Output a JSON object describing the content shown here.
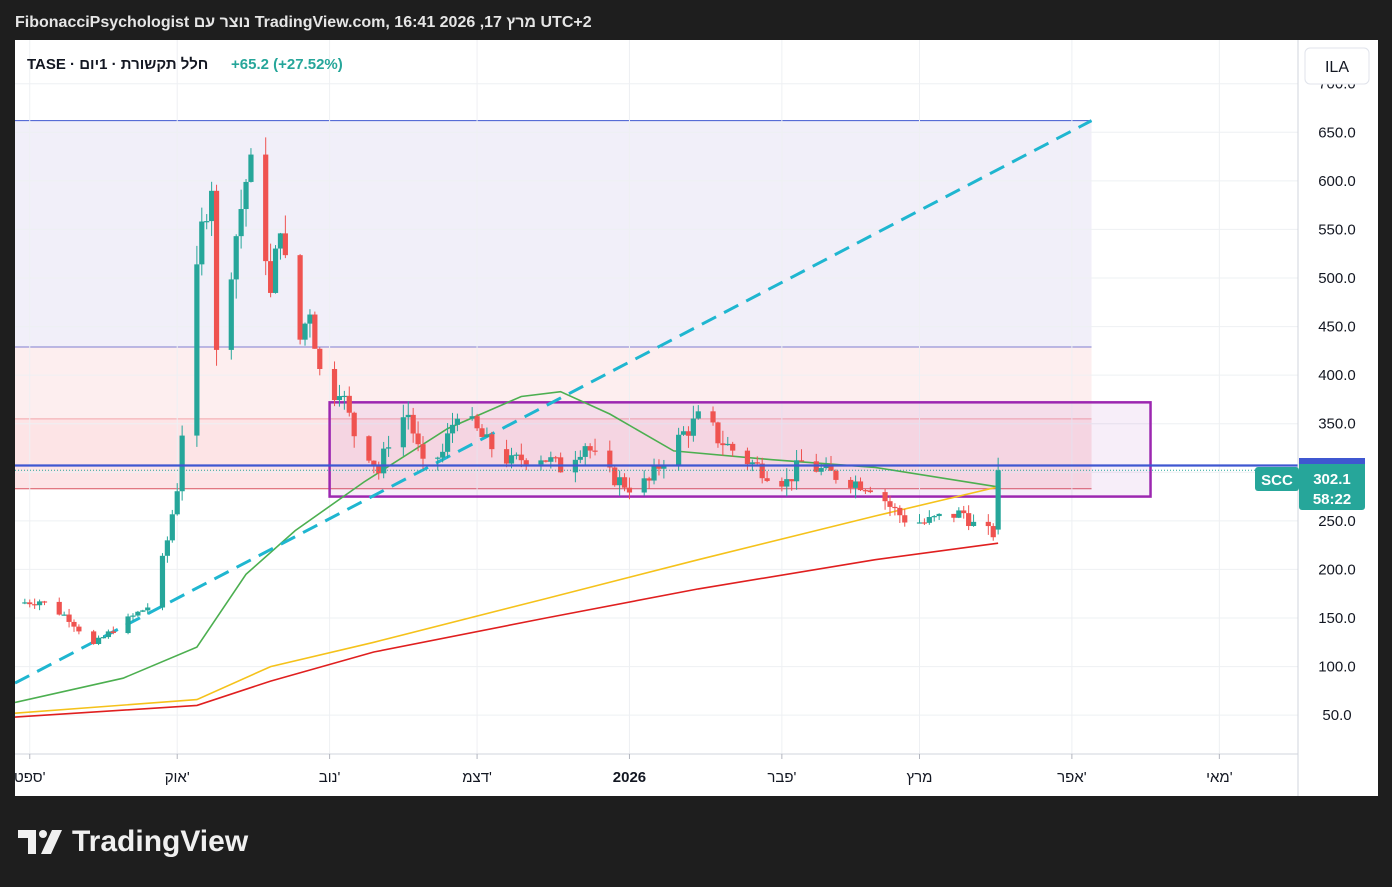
{
  "header": {
    "text": "FibonacciPsychologist נוצר עם TradingView.com, 16:41 2026 ,17 מרץ UTC+2"
  },
  "legend": {
    "symbol_line": "TASE · חלל תקשורת · 1יום",
    "change": "+65.2 (+27.52%)"
  },
  "currency": "ILA",
  "price_tag": {
    "symbol": "SCC",
    "price": "302.1",
    "countdown": "58:22"
  },
  "logo": {
    "text": "TradingView",
    "icon": "tradingview-logo-icon"
  },
  "colors": {
    "up": "#26a69a",
    "down": "#ef5350",
    "ma_green": "#4caf50",
    "ma_yellow": "#f5c21b",
    "ma_red": "#e01f1f",
    "trend": "#1fb6d0",
    "box": "#9c27b0",
    "level": "#3f57d1"
  },
  "chart_data": {
    "type": "candlestick",
    "ylim": [
      10,
      745
    ],
    "y_ticks": [
      50,
      100,
      150,
      200,
      250,
      300,
      350,
      400,
      450,
      500,
      550,
      600,
      650,
      700
    ],
    "y_tick_labels": [
      "50.0",
      "100.0",
      "150.0",
      "200.0",
      "250.0",
      "300.0",
      "350.0",
      "400.0",
      "450.0",
      "500.0",
      "550.0",
      "600.0",
      "650.0",
      "700.0"
    ],
    "x_start": "2025-08-29",
    "x_end": "2026-05-17",
    "x_ticks": [
      {
        "date": "2025-09-01",
        "label": "ספט'",
        "bold": false
      },
      {
        "date": "2025-10-01",
        "label": "אוק'",
        "bold": false
      },
      {
        "date": "2025-11-01",
        "label": "נוב'",
        "bold": false
      },
      {
        "date": "2025-12-01",
        "label": "דצמ'",
        "bold": false
      },
      {
        "date": "2026-01-01",
        "label": "2026",
        "bold": true
      },
      {
        "date": "2026-02-01",
        "label": "פבר'",
        "bold": false
      },
      {
        "date": "2026-03-01",
        "label": "מרץ",
        "bold": false
      },
      {
        "date": "2026-04-01",
        "label": "אפר'",
        "bold": false
      },
      {
        "date": "2026-05-01",
        "label": "מאי'",
        "bold": false
      }
    ],
    "anchors": [
      {
        "date": "2025-08-29",
        "v": 165
      },
      {
        "date": "2025-09-03",
        "v": 168
      },
      {
        "date": "2025-09-09",
        "v": 150
      },
      {
        "date": "2025-09-14",
        "v": 122
      },
      {
        "date": "2025-09-18",
        "v": 138
      },
      {
        "date": "2025-09-23",
        "v": 155
      },
      {
        "date": "2025-09-26",
        "v": 165
      },
      {
        "date": "2025-09-29",
        "v": 230
      },
      {
        "date": "2025-10-01",
        "v": 285
      },
      {
        "date": "2025-10-03",
        "v": 400
      },
      {
        "date": "2025-10-06",
        "v": 550
      },
      {
        "date": "2025-10-08",
        "v": 600
      },
      {
        "date": "2025-10-09",
        "v": 420
      },
      {
        "date": "2025-10-13",
        "v": 545
      },
      {
        "date": "2025-10-15",
        "v": 600
      },
      {
        "date": "2025-10-17",
        "v": 625
      },
      {
        "date": "2025-10-20",
        "v": 480
      },
      {
        "date": "2025-10-22",
        "v": 560
      },
      {
        "date": "2025-10-25",
        "v": 420
      },
      {
        "date": "2025-10-28",
        "v": 470
      },
      {
        "date": "2025-10-31",
        "v": 370
      },
      {
        "date": "2025-11-03",
        "v": 390
      },
      {
        "date": "2025-11-06",
        "v": 340
      },
      {
        "date": "2025-11-09",
        "v": 320
      },
      {
        "date": "2025-11-11",
        "v": 300
      },
      {
        "date": "2025-11-14",
        "v": 350
      },
      {
        "date": "2025-11-17",
        "v": 360
      },
      {
        "date": "2025-11-20",
        "v": 305
      },
      {
        "date": "2025-11-24",
        "v": 320
      },
      {
        "date": "2025-11-27",
        "v": 365
      },
      {
        "date": "2025-12-03",
        "v": 330
      },
      {
        "date": "2025-12-08",
        "v": 310
      },
      {
        "date": "2025-12-13",
        "v": 320
      },
      {
        "date": "2025-12-18",
        "v": 305
      },
      {
        "date": "2025-12-23",
        "v": 330
      },
      {
        "date": "2025-12-27",
        "v": 300
      },
      {
        "date": "2026-01-01",
        "v": 285
      },
      {
        "date": "2026-01-05",
        "v": 290
      },
      {
        "date": "2026-01-08",
        "v": 315
      },
      {
        "date": "2026-01-12",
        "v": 340
      },
      {
        "date": "2026-01-16",
        "v": 360
      },
      {
        "date": "2026-01-19",
        "v": 335
      },
      {
        "date": "2026-01-24",
        "v": 315
      },
      {
        "date": "2026-01-29",
        "v": 300
      },
      {
        "date": "2026-02-02",
        "v": 290
      },
      {
        "date": "2026-02-05",
        "v": 310
      },
      {
        "date": "2026-02-10",
        "v": 300
      },
      {
        "date": "2026-02-16",
        "v": 290
      },
      {
        "date": "2026-02-20",
        "v": 285
      },
      {
        "date": "2026-02-23",
        "v": 265
      },
      {
        "date": "2026-02-26",
        "v": 252
      },
      {
        "date": "2026-03-02",
        "v": 248
      },
      {
        "date": "2026-03-06",
        "v": 255
      },
      {
        "date": "2026-03-10",
        "v": 258
      },
      {
        "date": "2026-03-13",
        "v": 240
      },
      {
        "date": "2026-03-16",
        "v": 237
      }
    ],
    "last_candle": {
      "date": "2026-03-17",
      "open": 241,
      "high": 315,
      "low": 236,
      "close": 302.1
    },
    "moving_averages": [
      {
        "color": "#4caf50",
        "points": [
          [
            "2025-08-29",
            63
          ],
          [
            "2025-09-20",
            88
          ],
          [
            "2025-10-05",
            120
          ],
          [
            "2025-10-15",
            195
          ],
          [
            "2025-10-25",
            240
          ],
          [
            "2025-11-08",
            290
          ],
          [
            "2025-11-25",
            345
          ],
          [
            "2025-12-10",
            378
          ],
          [
            "2025-12-18",
            383
          ],
          [
            "2025-12-28",
            360
          ],
          [
            "2026-01-10",
            322
          ],
          [
            "2026-01-30",
            313
          ],
          [
            "2026-02-20",
            305
          ],
          [
            "2026-03-17",
            285
          ]
        ]
      },
      {
        "color": "#f5c21b",
        "points": [
          [
            "2025-08-29",
            52
          ],
          [
            "2025-10-05",
            66
          ],
          [
            "2025-10-20",
            100
          ],
          [
            "2025-11-10",
            125
          ],
          [
            "2025-12-15",
            170
          ],
          [
            "2026-01-15",
            210
          ],
          [
            "2026-02-20",
            255
          ],
          [
            "2026-03-17",
            285
          ]
        ]
      },
      {
        "color": "#e01f1f",
        "points": [
          [
            "2025-08-29",
            48
          ],
          [
            "2025-10-05",
            60
          ],
          [
            "2025-10-20",
            85
          ],
          [
            "2025-11-10",
            115
          ],
          [
            "2025-12-15",
            150
          ],
          [
            "2026-01-15",
            180
          ],
          [
            "2026-02-20",
            210
          ],
          [
            "2026-03-17",
            227
          ]
        ]
      }
    ],
    "trendline": {
      "from": {
        "date": "2025-08-29",
        "v": 83
      },
      "to": {
        "date": "2026-04-05",
        "v": 662
      },
      "color": "#1fb6d0"
    },
    "consolidation_box": {
      "from_date": "2025-11-01",
      "to_date": "2026-04-17",
      "top": 372,
      "bottom": 275,
      "color": "#9c27b0"
    },
    "fib_zone": {
      "from_date": "2025-08-29",
      "to_date": "2026-04-05",
      "levels": [
        662,
        429,
        355,
        283
      ],
      "colors": [
        "#f1eff9",
        "#fdeeef",
        "#fde4e6"
      ]
    },
    "horizontal_level": {
      "value": 307,
      "color": "#3f57d1"
    }
  }
}
